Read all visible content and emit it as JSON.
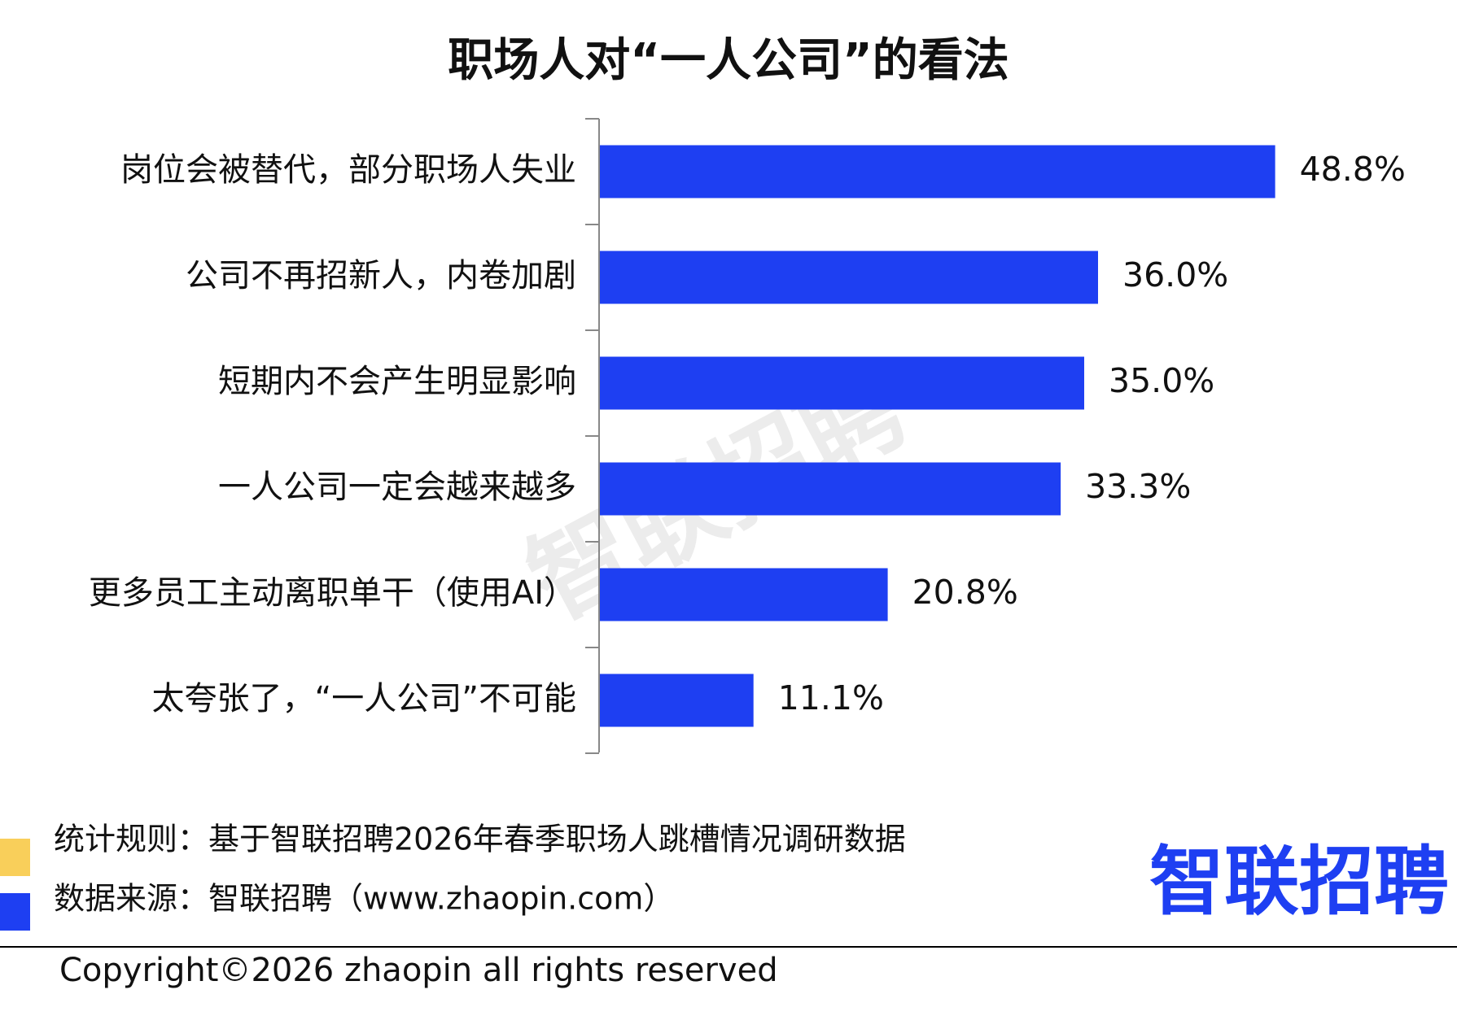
{
  "chart_data": {
    "type": "barh",
    "title": "职场人对“一人公司”的看法",
    "categories": [
      "岗位会被替代，部分职场人失业",
      "公司不再招新人，内卷加剧",
      "短期内不会产生明显影响",
      "一人公司一定会越来越多",
      "更多员工主动离职单干（使用AI）",
      "太夸张了，“一人公司”不可能"
    ],
    "values": [
      48.8,
      36.0,
      35.0,
      33.3,
      20.8,
      11.1
    ],
    "value_labels": [
      "48.8%",
      "36.0%",
      "35.0%",
      "33.3%",
      "20.8%",
      "11.1%"
    ],
    "color": "#1e3ff2"
  },
  "footer": {
    "rule": "统计规则：基于智联招聘2026年春季职场人跳槽情况调研数据",
    "source": "数据来源：智联招聘（www.zhaopin.com）",
    "logo": "智联招聘",
    "watermark": "智联招聘",
    "copyright": "Copyright©2026 zhaopin all rights reserved"
  }
}
